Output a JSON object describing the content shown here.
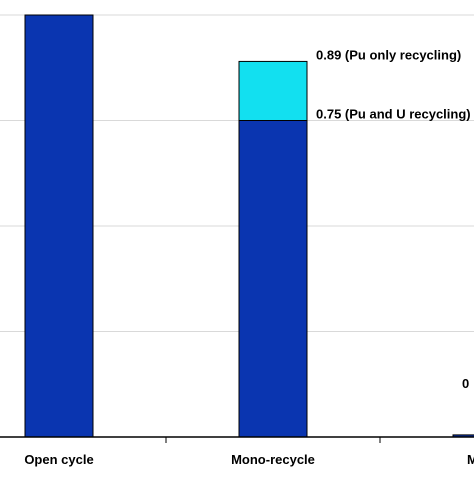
{
  "chart_data": {
    "type": "bar",
    "stacked": true,
    "categories": [
      "Open cycle",
      "Mono-recycle",
      "Multi"
    ],
    "series": [
      {
        "values": [
          1.0,
          0.75,
          0.005
        ],
        "color": "#0a35b0"
      },
      {
        "values": [
          0,
          0.14,
          0
        ],
        "color": "#12e0f0"
      }
    ],
    "annotations": [
      {
        "category": "Mono-recycle",
        "value": 0.89,
        "text": "0.89 (Pu only recycling)"
      },
      {
        "category": "Mono-recycle",
        "value": 0.75,
        "text": "0.75 (Pu and U recycling)"
      },
      {
        "category": "Multi",
        "value": 0.1,
        "text": "0"
      }
    ],
    "ylim": [
      0,
      1
    ],
    "grid": true,
    "legend": "none"
  }
}
